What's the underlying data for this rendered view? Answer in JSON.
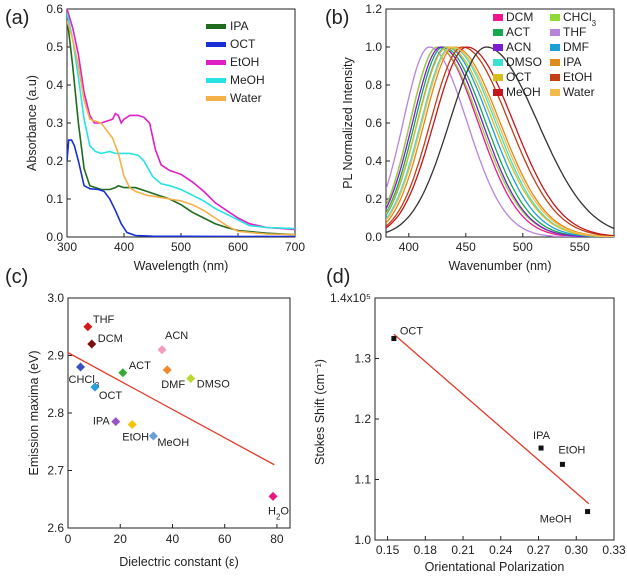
{
  "chart_data": [
    {
      "panel": "(a)",
      "type": "line",
      "xlabel": "Wavelength (nm)",
      "ylabel": "Absorbance (a.u)",
      "xlim": [
        300,
        700
      ],
      "ylim": [
        0,
        0.6
      ],
      "xticks": [
        "300",
        "400",
        "500",
        "600",
        "700"
      ],
      "yticks": [
        "0.0",
        "0.1",
        "0.2",
        "0.3",
        "0.4",
        "0.5",
        "0.6"
      ],
      "legend_position": "top-right",
      "series": [
        {
          "name": "IPA",
          "color": "#1e6b1e",
          "points": [
            [
              300,
              0.58
            ],
            [
              310,
              0.45
            ],
            [
              320,
              0.3
            ],
            [
              330,
              0.18
            ],
            [
              340,
              0.135
            ],
            [
              360,
              0.125
            ],
            [
              375,
              0.125
            ],
            [
              385,
              0.13
            ],
            [
              390,
              0.135
            ],
            [
              400,
              0.13
            ],
            [
              420,
              0.13
            ],
            [
              440,
              0.12
            ],
            [
              460,
              0.11
            ],
            [
              480,
              0.1
            ],
            [
              500,
              0.085
            ],
            [
              520,
              0.065
            ],
            [
              540,
              0.05
            ],
            [
              560,
              0.035
            ],
            [
              580,
              0.025
            ],
            [
              600,
              0.017
            ],
            [
              650,
              0.01
            ],
            [
              700,
              0.006
            ]
          ]
        },
        {
          "name": "OCT",
          "color": "#1a2fd6",
          "points": [
            [
              300,
              0.2
            ],
            [
              303,
              0.255
            ],
            [
              308,
              0.255
            ],
            [
              313,
              0.24
            ],
            [
              320,
              0.2
            ],
            [
              330,
              0.135
            ],
            [
              340,
              0.127
            ],
            [
              355,
              0.125
            ],
            [
              365,
              0.12
            ],
            [
              375,
              0.1
            ],
            [
              385,
              0.07
            ],
            [
              395,
              0.035
            ],
            [
              405,
              0.012
            ],
            [
              420,
              0.004
            ],
            [
              450,
              0.002
            ],
            [
              700,
              0.001
            ]
          ]
        },
        {
          "name": "EtOH",
          "color": "#e01fc6",
          "points": [
            [
              300,
              0.6
            ],
            [
              310,
              0.55
            ],
            [
              320,
              0.48
            ],
            [
              330,
              0.38
            ],
            [
              340,
              0.32
            ],
            [
              348,
              0.3
            ],
            [
              360,
              0.3
            ],
            [
              370,
              0.305
            ],
            [
              380,
              0.31
            ],
            [
              385,
              0.325
            ],
            [
              390,
              0.32
            ],
            [
              395,
              0.3
            ],
            [
              400,
              0.31
            ],
            [
              410,
              0.32
            ],
            [
              425,
              0.32
            ],
            [
              435,
              0.315
            ],
            [
              445,
              0.3
            ],
            [
              455,
              0.23
            ],
            [
              465,
              0.19
            ],
            [
              480,
              0.175
            ],
            [
              500,
              0.165
            ],
            [
              520,
              0.145
            ],
            [
              540,
              0.12
            ],
            [
              560,
              0.09
            ],
            [
              580,
              0.07
            ],
            [
              600,
              0.05
            ],
            [
              620,
              0.035
            ],
            [
              650,
              0.025
            ],
            [
              700,
              0.02
            ]
          ]
        },
        {
          "name": "MeOH",
          "color": "#27e3e3",
          "points": [
            [
              300,
              0.59
            ],
            [
              310,
              0.52
            ],
            [
              320,
              0.42
            ],
            [
              330,
              0.31
            ],
            [
              340,
              0.24
            ],
            [
              350,
              0.225
            ],
            [
              360,
              0.22
            ],
            [
              375,
              0.225
            ],
            [
              385,
              0.22
            ],
            [
              395,
              0.22
            ],
            [
              410,
              0.22
            ],
            [
              425,
              0.215
            ],
            [
              435,
              0.2
            ],
            [
              450,
              0.16
            ],
            [
              465,
              0.14
            ],
            [
              480,
              0.135
            ],
            [
              500,
              0.125
            ],
            [
              520,
              0.11
            ],
            [
              540,
              0.095
            ],
            [
              560,
              0.075
            ],
            [
              580,
              0.06
            ],
            [
              600,
              0.045
            ],
            [
              620,
              0.03
            ],
            [
              650,
              0.025
            ],
            [
              700,
              0.022
            ]
          ]
        },
        {
          "name": "Water",
          "color": "#f4b14a",
          "points": [
            [
              300,
              0.57
            ],
            [
              310,
              0.52
            ],
            [
              320,
              0.45
            ],
            [
              330,
              0.36
            ],
            [
              340,
              0.31
            ],
            [
              350,
              0.305
            ],
            [
              360,
              0.3
            ],
            [
              370,
              0.28
            ],
            [
              380,
              0.26
            ],
            [
              390,
              0.22
            ],
            [
              400,
              0.16
            ],
            [
              410,
              0.13
            ],
            [
              420,
              0.12
            ],
            [
              440,
              0.11
            ],
            [
              460,
              0.105
            ],
            [
              480,
              0.1
            ],
            [
              500,
              0.095
            ],
            [
              520,
              0.085
            ],
            [
              540,
              0.07
            ],
            [
              560,
              0.05
            ],
            [
              580,
              0.03
            ],
            [
              600,
              0.015
            ],
            [
              650,
              0.008
            ],
            [
              700,
              0.006
            ]
          ]
        }
      ]
    },
    {
      "panel": "(b)",
      "type": "line",
      "xlabel": "Wavenumber (nm)",
      "ylabel": "PL Normalized Intensity",
      "xlim": [
        380,
        580
      ],
      "ylim": [
        0,
        1.2
      ],
      "xticks": [
        "400",
        "450",
        "500",
        "550"
      ],
      "yticks": [
        "0.0",
        "0.2",
        "0.4",
        "0.6",
        "0.8",
        "1.0",
        "1.2"
      ],
      "legend_position": "top-right",
      "series": [
        {
          "name": "DCM",
          "color": "#f0158d",
          "peak": 425,
          "wl": 28,
          "wr": 42
        },
        {
          "name": "CHCl3",
          "color": "#8fd936",
          "peak": 425,
          "wl": 28,
          "wr": 44
        },
        {
          "name": "ACT",
          "color": "#15a84e",
          "peak": 430,
          "wl": 29,
          "wr": 44
        },
        {
          "name": "THF",
          "color": "#b585dc",
          "peak": 418,
          "wl": 27,
          "wr": 39
        },
        {
          "name": "ACN",
          "color": "#7a1bd0",
          "peak": 428,
          "wl": 29,
          "wr": 43
        },
        {
          "name": "DMF",
          "color": "#1c9fd8",
          "peak": 433,
          "wl": 30,
          "wr": 45
        },
        {
          "name": "DMSO",
          "color": "#3ce0d3",
          "peak": 437,
          "wl": 31,
          "wr": 46
        },
        {
          "name": "IPA",
          "color": "#e0891c",
          "peak": 440,
          "wl": 31,
          "wr": 47
        },
        {
          "name": "OCT",
          "color": "#d6bf1c",
          "peak": 434,
          "wl": 31,
          "wr": 47
        },
        {
          "name": "EtOH",
          "color": "#c23e14",
          "peak": 447,
          "wl": 33,
          "wr": 48
        },
        {
          "name": "MeOH",
          "color": "#c4161c",
          "peak": 451,
          "wl": 34,
          "wr": 48
        },
        {
          "name": "Water",
          "color": "#f4bb4c",
          "peak": 438,
          "wl": 31,
          "wr": 47
        },
        {
          "name": "",
          "color": "#333333",
          "peak": 468,
          "wl": 38,
          "wr": 53
        }
      ]
    },
    {
      "panel": "(c)",
      "type": "scatter",
      "xlabel": "Dielectric constant (ε)",
      "ylabel": "Emission maxima (eV)",
      "xlim": [
        0,
        85
      ],
      "ylim": [
        2.6,
        3.0
      ],
      "xticks": [
        "0",
        "20",
        "40",
        "60",
        "80"
      ],
      "yticks": [
        "2.6",
        "2.7",
        "2.8",
        "2.9",
        "3.0"
      ],
      "fit_line": [
        [
          0,
          2.905
        ],
        [
          79,
          2.71
        ]
      ],
      "points": [
        {
          "label": "THF",
          "x": 7.6,
          "y": 2.95,
          "color": "#d21818"
        },
        {
          "label": "DCM",
          "x": 9.1,
          "y": 2.92,
          "color": "#7a1010"
        },
        {
          "label": "ACN",
          "x": 36,
          "y": 2.91,
          "color": "#f59ab8"
        },
        {
          "label": "CHCl3",
          "x": 4.8,
          "y": 2.88,
          "color": "#3b4fc4"
        },
        {
          "label": "ACT",
          "x": 21,
          "y": 2.87,
          "color": "#3aa63a"
        },
        {
          "label": "DMF",
          "x": 38,
          "y": 2.875,
          "color": "#f08a30"
        },
        {
          "label": "DMSO",
          "x": 47,
          "y": 2.86,
          "color": "#b8d92e"
        },
        {
          "label": "OCT",
          "x": 10.3,
          "y": 2.845,
          "color": "#2a9fe0"
        },
        {
          "label": "IPA",
          "x": 18.3,
          "y": 2.785,
          "color": "#9a52c4"
        },
        {
          "label": "EtOH",
          "x": 24.6,
          "y": 2.78,
          "color": "#f5c300"
        },
        {
          "label": "MeOH",
          "x": 32.7,
          "y": 2.76,
          "color": "#6a9fd8"
        },
        {
          "label": "H2O",
          "x": 78.5,
          "y": 2.655,
          "color": "#e8167e"
        }
      ]
    },
    {
      "panel": "(d)",
      "type": "scatter",
      "xlabel": "Orientational Polarization",
      "ylabel": "Stokes Shift (cm⁻¹)",
      "xlim": [
        0.14,
        0.33
      ],
      "ylim": [
        1.0,
        1.4
      ],
      "xticks": [
        "0.15",
        "0.18",
        "0.21",
        "0.24",
        "0.27",
        "0.30",
        "0.33"
      ],
      "yticks": [
        "1.0",
        "1.1",
        "1.2",
        "1.3",
        "1.4x10⁵"
      ],
      "fit_line": [
        [
          0.155,
          1.34
        ],
        [
          0.31,
          1.06
        ]
      ],
      "points": [
        {
          "label": "OCT",
          "x": 0.155,
          "y": 1.333
        },
        {
          "label": "IPA",
          "x": 0.272,
          "y": 1.152
        },
        {
          "label": "EtOH",
          "x": 0.289,
          "y": 1.125
        },
        {
          "label": "MeOH",
          "x": 0.309,
          "y": 1.047
        }
      ]
    }
  ]
}
